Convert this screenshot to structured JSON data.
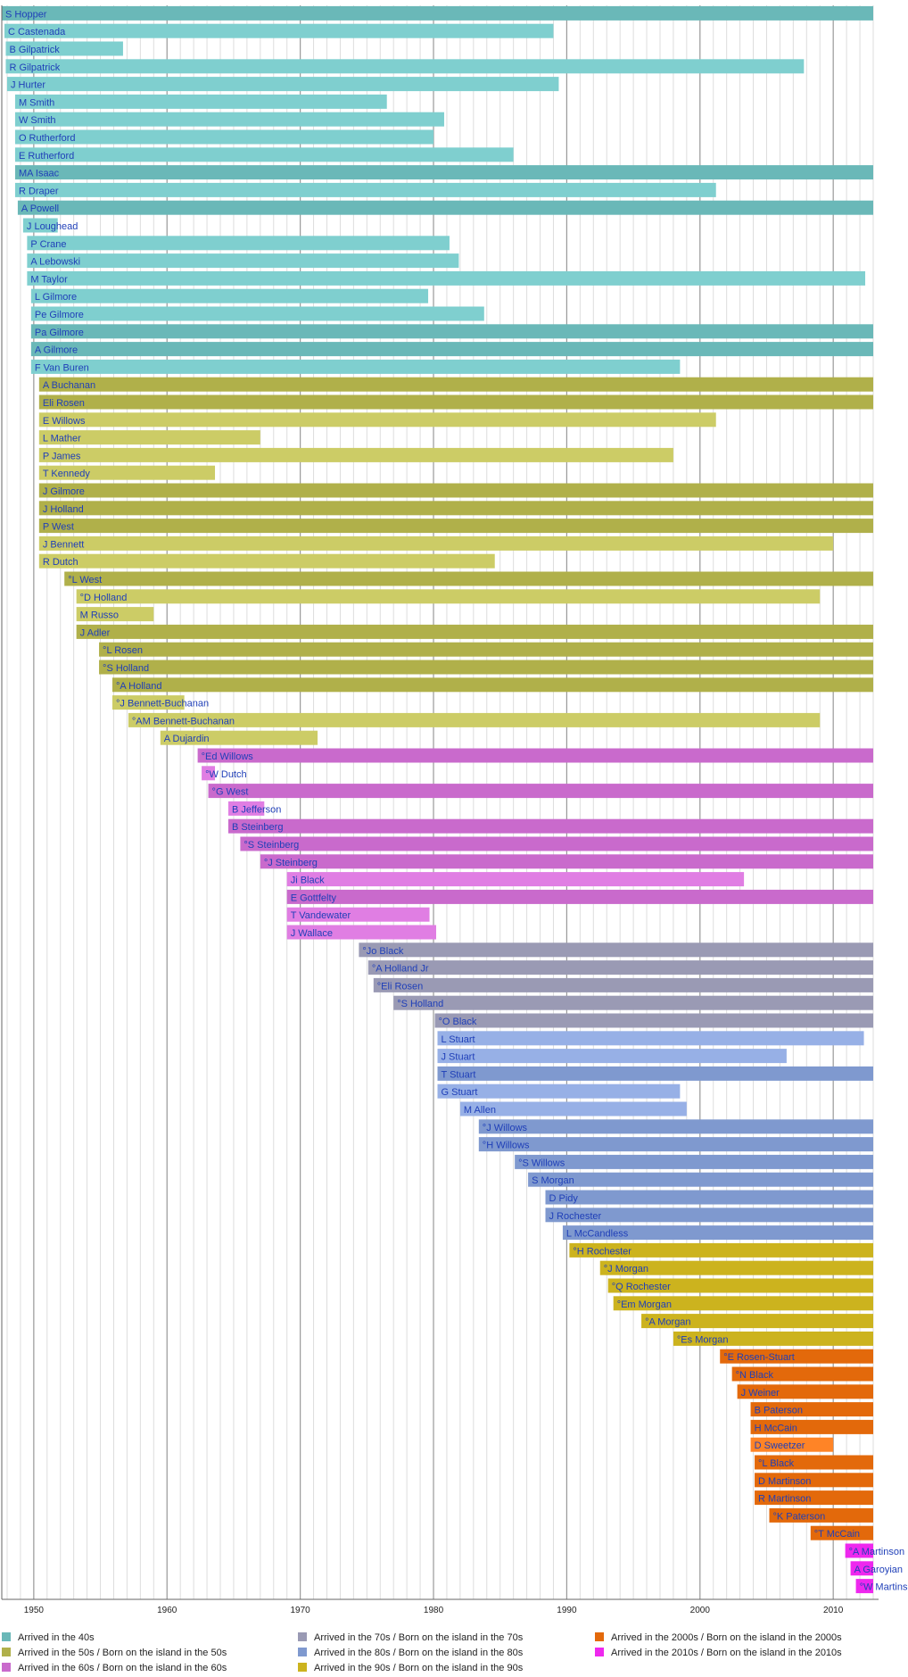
{
  "chart_data": {
    "type": "bar",
    "orientation": "horizontal-timeline",
    "xlim": [
      1947.6,
      2013.0
    ],
    "x_ticks": [
      1950,
      1960,
      1970,
      1980,
      1990,
      2000,
      2010
    ],
    "grid": true,
    "colors": {
      "40s": [
        "#6ab8b8",
        "#7fcfcf"
      ],
      "50s": [
        "#b0b04a",
        "#cccc66"
      ],
      "60s": [
        "#c96acc",
        "#e07ee3"
      ],
      "70s": [
        "#9a9ab4"
      ],
      "80s": [
        "#7f99cf",
        "#97b0e6"
      ],
      "90s": [
        "#ccb31e"
      ],
      "2000s": [
        "#e3690b",
        "#ff8426"
      ],
      "2010s": [
        "#ee28ee"
      ]
    },
    "legend_position": "bottom",
    "legend": [
      {
        "label": "Arrived in the 40s",
        "group": "40s"
      },
      {
        "label": "Arrived in the 50s / Born on the island in the 50s",
        "group": "50s"
      },
      {
        "label": "Arrived in the 60s / Born on the island in the 60s",
        "group": "60s"
      },
      {
        "label": "Arrived in the 70s / Born on the island in the 70s",
        "group": "70s"
      },
      {
        "label": "Arrived in the 80s / Born on the island in the 80s",
        "group": "80s"
      },
      {
        "label": "Arrived in the 90s / Born on the island in the 90s",
        "group": "90s"
      },
      {
        "label": "Arrived in the 2000s / Born on the island in the 2000s",
        "group": "2000s"
      },
      {
        "label": "Arrived in the 2010s / Born on the island in the 2010s",
        "group": "2010s"
      }
    ],
    "series": [
      {
        "name": "S Hopper",
        "start": 1947.6,
        "end": 2013.0,
        "group": "40s",
        "shade": 0
      },
      {
        "name": "C Castenada",
        "start": 1947.8,
        "end": 1989.0,
        "group": "40s",
        "shade": 1
      },
      {
        "name": "B Gilpatrick",
        "start": 1947.9,
        "end": 1956.7,
        "group": "40s",
        "shade": 1
      },
      {
        "name": "R Gilpatrick",
        "start": 1947.9,
        "end": 2007.8,
        "group": "40s",
        "shade": 1
      },
      {
        "name": "J Hurter",
        "start": 1948.0,
        "end": 1989.4,
        "group": "40s",
        "shade": 1
      },
      {
        "name": "M Smith",
        "start": 1948.6,
        "end": 1976.5,
        "group": "40s",
        "shade": 1
      },
      {
        "name": "W Smith",
        "start": 1948.6,
        "end": 1980.8,
        "group": "40s",
        "shade": 1
      },
      {
        "name": "O Rutherford",
        "start": 1948.6,
        "end": 1980.0,
        "group": "40s",
        "shade": 1
      },
      {
        "name": "E Rutherford",
        "start": 1948.6,
        "end": 1986.0,
        "group": "40s",
        "shade": 1
      },
      {
        "name": "MA Isaac",
        "start": 1948.6,
        "end": 2013.0,
        "group": "40s",
        "shade": 0
      },
      {
        "name": "R Draper",
        "start": 1948.6,
        "end": 2001.2,
        "group": "40s",
        "shade": 1
      },
      {
        "name": "A Powell",
        "start": 1948.8,
        "end": 2013.0,
        "group": "40s",
        "shade": 0
      },
      {
        "name": "J Loughead",
        "start": 1949.2,
        "end": 1951.8,
        "group": "40s",
        "shade": 1
      },
      {
        "name": "P Crane",
        "start": 1949.5,
        "end": 1981.2,
        "group": "40s",
        "shade": 1
      },
      {
        "name": "A Lebowski",
        "start": 1949.5,
        "end": 1981.9,
        "group": "40s",
        "shade": 1
      },
      {
        "name": "M Taylor",
        "start": 1949.5,
        "end": 2012.4,
        "group": "40s",
        "shade": 1
      },
      {
        "name": "L Gilmore",
        "start": 1949.8,
        "end": 1979.6,
        "group": "40s",
        "shade": 1
      },
      {
        "name": "Pe Gilmore",
        "start": 1949.8,
        "end": 1983.8,
        "group": "40s",
        "shade": 1
      },
      {
        "name": "Pa Gilmore",
        "start": 1949.8,
        "end": 2013.0,
        "group": "40s",
        "shade": 0
      },
      {
        "name": "A Gilmore",
        "start": 1949.8,
        "end": 2013.0,
        "group": "40s",
        "shade": 0
      },
      {
        "name": "F Van Buren",
        "start": 1949.8,
        "end": 1998.5,
        "group": "40s",
        "shade": 1
      },
      {
        "name": "A Buchanan",
        "start": 1950.4,
        "end": 2013.0,
        "group": "50s",
        "shade": 0
      },
      {
        "name": "Eli Rosen",
        "start": 1950.4,
        "end": 2013.0,
        "group": "50s",
        "shade": 0
      },
      {
        "name": "E Willows",
        "start": 1950.4,
        "end": 2001.2,
        "group": "50s",
        "shade": 1
      },
      {
        "name": "L Mather",
        "start": 1950.4,
        "end": 1967.0,
        "group": "50s",
        "shade": 1
      },
      {
        "name": "P James",
        "start": 1950.4,
        "end": 1998.0,
        "group": "50s",
        "shade": 1
      },
      {
        "name": "T Kennedy",
        "start": 1950.4,
        "end": 1963.6,
        "group": "50s",
        "shade": 1
      },
      {
        "name": "J Gilmore",
        "start": 1950.4,
        "end": 2013.0,
        "group": "50s",
        "shade": 0
      },
      {
        "name": "J Holland",
        "start": 1950.4,
        "end": 2013.0,
        "group": "50s",
        "shade": 0
      },
      {
        "name": "P West",
        "start": 1950.4,
        "end": 2013.0,
        "group": "50s",
        "shade": 0
      },
      {
        "name": "J Bennett",
        "start": 1950.4,
        "end": 2010.0,
        "group": "50s",
        "shade": 1
      },
      {
        "name": "R Dutch",
        "start": 1950.4,
        "end": 1984.6,
        "group": "50s",
        "shade": 1
      },
      {
        "name": "°L West",
        "start": 1952.3,
        "end": 2013.0,
        "group": "50s",
        "shade": 0
      },
      {
        "name": "°D Holland",
        "start": 1953.2,
        "end": 2009.0,
        "group": "50s",
        "shade": 1
      },
      {
        "name": "M Russo",
        "start": 1953.2,
        "end": 1959.0,
        "group": "50s",
        "shade": 1
      },
      {
        "name": "J Adler",
        "start": 1953.2,
        "end": 2013.0,
        "group": "50s",
        "shade": 0
      },
      {
        "name": "°L Rosen",
        "start": 1954.9,
        "end": 2013.0,
        "group": "50s",
        "shade": 0
      },
      {
        "name": "°S Holland",
        "start": 1954.9,
        "end": 2013.0,
        "group": "50s",
        "shade": 0
      },
      {
        "name": "°A Holland",
        "start": 1955.9,
        "end": 2013.0,
        "group": "50s",
        "shade": 0
      },
      {
        "name": "°J Bennett-Buchanan",
        "start": 1955.9,
        "end": 1961.3,
        "group": "50s",
        "shade": 1
      },
      {
        "name": "°AM Bennett-Buchanan",
        "start": 1957.1,
        "end": 2009.0,
        "group": "50s",
        "shade": 1
      },
      {
        "name": "A Dujardin",
        "start": 1959.5,
        "end": 1971.3,
        "group": "50s",
        "shade": 1
      },
      {
        "name": "°Ed Willows",
        "start": 1962.3,
        "end": 2013.0,
        "group": "60s",
        "shade": 0
      },
      {
        "name": "°W Dutch",
        "start": 1962.6,
        "end": 1963.6,
        "group": "60s",
        "shade": 1
      },
      {
        "name": "°G West",
        "start": 1963.1,
        "end": 2013.0,
        "group": "60s",
        "shade": 0
      },
      {
        "name": "B Jefferson",
        "start": 1964.6,
        "end": 1967.3,
        "group": "60s",
        "shade": 1
      },
      {
        "name": "B Steinberg",
        "start": 1964.6,
        "end": 2013.0,
        "group": "60s",
        "shade": 0
      },
      {
        "name": "°S Steinberg",
        "start": 1965.5,
        "end": 2013.0,
        "group": "60s",
        "shade": 0
      },
      {
        "name": "°J Steinberg",
        "start": 1967.0,
        "end": 2013.0,
        "group": "60s",
        "shade": 0
      },
      {
        "name": "Ji Black",
        "start": 1969.0,
        "end": 2003.3,
        "group": "60s",
        "shade": 1
      },
      {
        "name": "E Gottfelty",
        "start": 1969.0,
        "end": 2013.0,
        "group": "60s",
        "shade": 0
      },
      {
        "name": "T Vandewater",
        "start": 1969.0,
        "end": 1979.7,
        "group": "60s",
        "shade": 1
      },
      {
        "name": "J Wallace",
        "start": 1969.0,
        "end": 1980.2,
        "group": "60s",
        "shade": 1
      },
      {
        "name": "°Jo Black",
        "start": 1974.4,
        "end": 2013.0,
        "group": "70s",
        "shade": 0
      },
      {
        "name": "°A Holland Jr",
        "start": 1975.1,
        "end": 2013.0,
        "group": "70s",
        "shade": 0
      },
      {
        "name": "°Eli Rosen",
        "start": 1975.5,
        "end": 2013.0,
        "group": "70s",
        "shade": 0
      },
      {
        "name": "°S Holland",
        "start": 1977.0,
        "end": 2013.0,
        "group": "70s",
        "shade": 0
      },
      {
        "name": "°O Black",
        "start": 1980.1,
        "end": 2013.0,
        "group": "70s",
        "shade": 0
      },
      {
        "name": "L Stuart",
        "start": 1980.3,
        "end": 2012.3,
        "group": "80s",
        "shade": 1
      },
      {
        "name": "J Stuart",
        "start": 1980.3,
        "end": 2006.5,
        "group": "80s",
        "shade": 1
      },
      {
        "name": "T Stuart",
        "start": 1980.3,
        "end": 2013.0,
        "group": "80s",
        "shade": 0
      },
      {
        "name": "G Stuart",
        "start": 1980.3,
        "end": 1998.5,
        "group": "80s",
        "shade": 1
      },
      {
        "name": "M Allen",
        "start": 1982.0,
        "end": 1999.0,
        "group": "80s",
        "shade": 1
      },
      {
        "name": "°J Willows",
        "start": 1983.4,
        "end": 2013.0,
        "group": "80s",
        "shade": 0
      },
      {
        "name": "°H Willows",
        "start": 1983.4,
        "end": 2013.0,
        "group": "80s",
        "shade": 0
      },
      {
        "name": "°S Willows",
        "start": 1986.1,
        "end": 2013.0,
        "group": "80s",
        "shade": 0
      },
      {
        "name": "S Morgan",
        "start": 1987.1,
        "end": 2013.0,
        "group": "80s",
        "shade": 0
      },
      {
        "name": "D Pidy",
        "start": 1988.4,
        "end": 2013.0,
        "group": "80s",
        "shade": 0
      },
      {
        "name": "J Rochester",
        "start": 1988.4,
        "end": 2013.0,
        "group": "80s",
        "shade": 0
      },
      {
        "name": "L McCandless",
        "start": 1989.7,
        "end": 2013.0,
        "group": "80s",
        "shade": 0
      },
      {
        "name": "°H Rochester",
        "start": 1990.2,
        "end": 2013.0,
        "group": "90s",
        "shade": 0
      },
      {
        "name": "°J Morgan",
        "start": 1992.5,
        "end": 2013.0,
        "group": "90s",
        "shade": 0
      },
      {
        "name": "°Q Rochester",
        "start": 1993.1,
        "end": 2013.0,
        "group": "90s",
        "shade": 0
      },
      {
        "name": "°Em Morgan",
        "start": 1993.5,
        "end": 2013.0,
        "group": "90s",
        "shade": 0
      },
      {
        "name": "°A Morgan",
        "start": 1995.6,
        "end": 2013.0,
        "group": "90s",
        "shade": 0
      },
      {
        "name": "°Es Morgan",
        "start": 1998.0,
        "end": 2013.0,
        "group": "90s",
        "shade": 0
      },
      {
        "name": "°E Rosen-Stuart",
        "start": 2001.5,
        "end": 2013.0,
        "group": "2000s",
        "shade": 0
      },
      {
        "name": "°N Black",
        "start": 2002.4,
        "end": 2013.0,
        "group": "2000s",
        "shade": 0
      },
      {
        "name": "J Weiner",
        "start": 2002.8,
        "end": 2013.0,
        "group": "2000s",
        "shade": 0
      },
      {
        "name": "B Paterson",
        "start": 2003.8,
        "end": 2013.0,
        "group": "2000s",
        "shade": 0
      },
      {
        "name": "H McCain",
        "start": 2003.8,
        "end": 2013.0,
        "group": "2000s",
        "shade": 0
      },
      {
        "name": "D Sweetzer",
        "start": 2003.8,
        "end": 2010.0,
        "group": "2000s",
        "shade": 1
      },
      {
        "name": "°L Black",
        "start": 2004.1,
        "end": 2013.0,
        "group": "2000s",
        "shade": 0
      },
      {
        "name": "D Martinson",
        "start": 2004.1,
        "end": 2013.0,
        "group": "2000s",
        "shade": 0
      },
      {
        "name": "R Martinson",
        "start": 2004.1,
        "end": 2013.0,
        "group": "2000s",
        "shade": 0
      },
      {
        "name": "°K Paterson",
        "start": 2005.2,
        "end": 2013.0,
        "group": "2000s",
        "shade": 0
      },
      {
        "name": "°T McCain",
        "start": 2008.3,
        "end": 2013.0,
        "group": "2000s",
        "shade": 0
      },
      {
        "name": "°A Martinson",
        "start": 2010.9,
        "end": 2013.0,
        "group": "2010s",
        "shade": 0
      },
      {
        "name": "A Garoyian",
        "start": 2011.3,
        "end": 2013.0,
        "group": "2010s",
        "shade": 0
      },
      {
        "name": "°W Martinson",
        "start": 2011.7,
        "end": 2013.0,
        "group": "2010s",
        "shade": 0
      }
    ]
  }
}
